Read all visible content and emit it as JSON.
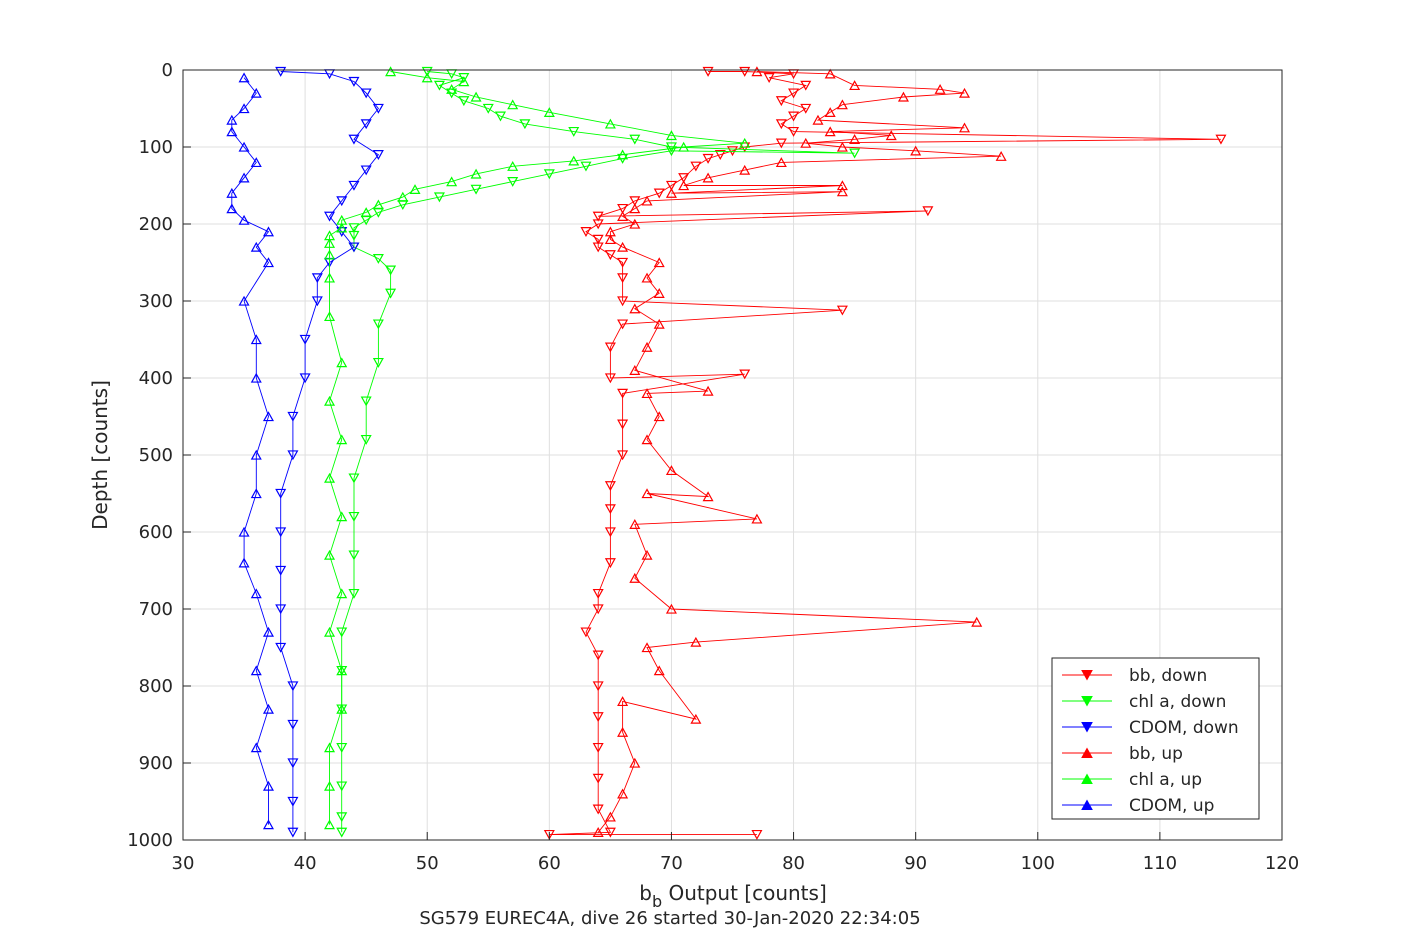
{
  "xlabel_main": "b",
  "xlabel_sub": "b",
  "xlabel_rest": " Output [counts]",
  "ylabel": "Depth [counts]",
  "caption": "SG579 EUREC4A, dive 26 started 30-Jan-2020 22:34:05",
  "legend": [
    {
      "label": "bb, down",
      "color": "#ff0000",
      "marker": "triangle-down"
    },
    {
      "label": "chl a, down",
      "color": "#00ff00",
      "marker": "triangle-down"
    },
    {
      "label": "CDOM, down",
      "color": "#0000ff",
      "marker": "triangle-down"
    },
    {
      "label": "bb, up",
      "color": "#ff0000",
      "marker": "triangle-up"
    },
    {
      "label": "chl a, up",
      "color": "#00ff00",
      "marker": "triangle-up"
    },
    {
      "label": "CDOM, up",
      "color": "#0000ff",
      "marker": "triangle-up"
    }
  ],
  "chart_data": {
    "type": "scatter",
    "legend_position": "bottom-right",
    "grid": true,
    "xlim": [
      30,
      120
    ],
    "ylim": [
      0,
      1000
    ],
    "y_reversed": true,
    "xticks": [
      "30",
      "40",
      "50",
      "60",
      "70",
      "80",
      "90",
      "100",
      "110",
      "120"
    ],
    "yticks": [
      "0",
      "100",
      "200",
      "300",
      "400",
      "500",
      "600",
      "700",
      "800",
      "900",
      "1000"
    ],
    "series": [
      {
        "name": "bb, down",
        "color": "#ff0000",
        "marker": "triangle-down",
        "points": [
          [
            73,
            2
          ],
          [
            76,
            2
          ],
          [
            80,
            5
          ],
          [
            78,
            10
          ],
          [
            81,
            20
          ],
          [
            80,
            30
          ],
          [
            79,
            40
          ],
          [
            81,
            50
          ],
          [
            80,
            60
          ],
          [
            79,
            70
          ],
          [
            80,
            80
          ],
          [
            115,
            90
          ],
          [
            79,
            95
          ],
          [
            76,
            100
          ],
          [
            75,
            105
          ],
          [
            74,
            110
          ],
          [
            73,
            115
          ],
          [
            72,
            125
          ],
          [
            71,
            140
          ],
          [
            70,
            150
          ],
          [
            69,
            160
          ],
          [
            67,
            170
          ],
          [
            66,
            180
          ],
          [
            64,
            190
          ],
          [
            91,
            183
          ],
          [
            64,
            200
          ],
          [
            63,
            210
          ],
          [
            64,
            220
          ],
          [
            64,
            230
          ],
          [
            65,
            240
          ],
          [
            66,
            250
          ],
          [
            66,
            270
          ],
          [
            66,
            300
          ],
          [
            84,
            312
          ],
          [
            66,
            330
          ],
          [
            65,
            360
          ],
          [
            65,
            400
          ],
          [
            76,
            395
          ],
          [
            66,
            420
          ],
          [
            66,
            460
          ],
          [
            66,
            500
          ],
          [
            65,
            540
          ],
          [
            65,
            570
          ],
          [
            65,
            600
          ],
          [
            65,
            640
          ],
          [
            64,
            680
          ],
          [
            64,
            700
          ],
          [
            63,
            730
          ],
          [
            64,
            760
          ],
          [
            64,
            800
          ],
          [
            64,
            840
          ],
          [
            64,
            880
          ],
          [
            64,
            920
          ],
          [
            64,
            960
          ],
          [
            65,
            990
          ],
          [
            60,
            993
          ],
          [
            77,
            993
          ]
        ]
      },
      {
        "name": "chl a, down",
        "color": "#00ff00",
        "marker": "triangle-down",
        "points": [
          [
            50,
            2
          ],
          [
            52,
            5
          ],
          [
            53,
            10
          ],
          [
            51,
            20
          ],
          [
            52,
            30
          ],
          [
            53,
            40
          ],
          [
            55,
            50
          ],
          [
            56,
            60
          ],
          [
            58,
            70
          ],
          [
            62,
            80
          ],
          [
            67,
            90
          ],
          [
            70,
            100
          ],
          [
            85,
            108
          ],
          [
            70,
            105
          ],
          [
            66,
            115
          ],
          [
            63,
            125
          ],
          [
            60,
            135
          ],
          [
            57,
            145
          ],
          [
            54,
            155
          ],
          [
            51,
            165
          ],
          [
            48,
            175
          ],
          [
            46,
            185
          ],
          [
            45,
            195
          ],
          [
            44,
            205
          ],
          [
            44,
            215
          ],
          [
            44,
            230
          ],
          [
            46,
            245
          ],
          [
            47,
            260
          ],
          [
            47,
            290
          ],
          [
            46,
            330
          ],
          [
            46,
            380
          ],
          [
            45,
            430
          ],
          [
            45,
            480
          ],
          [
            44,
            530
          ],
          [
            44,
            580
          ],
          [
            44,
            630
          ],
          [
            44,
            680
          ],
          [
            43,
            730
          ],
          [
            43,
            780
          ],
          [
            43,
            830
          ],
          [
            43,
            880
          ],
          [
            43,
            930
          ],
          [
            43,
            970
          ],
          [
            43,
            990
          ]
        ]
      },
      {
        "name": "CDOM, down",
        "color": "#0000ff",
        "marker": "triangle-down",
        "points": [
          [
            38,
            2
          ],
          [
            42,
            5
          ],
          [
            44,
            15
          ],
          [
            45,
            30
          ],
          [
            46,
            50
          ],
          [
            45,
            70
          ],
          [
            44,
            90
          ],
          [
            46,
            110
          ],
          [
            45,
            130
          ],
          [
            44,
            150
          ],
          [
            43,
            170
          ],
          [
            42,
            190
          ],
          [
            43,
            210
          ],
          [
            44,
            230
          ],
          [
            42,
            250
          ],
          [
            41,
            270
          ],
          [
            41,
            300
          ],
          [
            40,
            350
          ],
          [
            40,
            400
          ],
          [
            39,
            450
          ],
          [
            39,
            500
          ],
          [
            38,
            550
          ],
          [
            38,
            600
          ],
          [
            38,
            650
          ],
          [
            38,
            700
          ],
          [
            38,
            750
          ],
          [
            39,
            800
          ],
          [
            39,
            850
          ],
          [
            39,
            900
          ],
          [
            39,
            950
          ],
          [
            39,
            990
          ]
        ]
      },
      {
        "name": "bb, up",
        "color": "#ff0000",
        "marker": "triangle-up",
        "points": [
          [
            77,
            2
          ],
          [
            83,
            5
          ],
          [
            85,
            20
          ],
          [
            92,
            25
          ],
          [
            94,
            30
          ],
          [
            89,
            35
          ],
          [
            84,
            45
          ],
          [
            83,
            55
          ],
          [
            82,
            65
          ],
          [
            94,
            75
          ],
          [
            83,
            80
          ],
          [
            88,
            85
          ],
          [
            85,
            90
          ],
          [
            81,
            95
          ],
          [
            84,
            100
          ],
          [
            90,
            105
          ],
          [
            97,
            112
          ],
          [
            79,
            120
          ],
          [
            76,
            130
          ],
          [
            73,
            140
          ],
          [
            71,
            150
          ],
          [
            84,
            150
          ],
          [
            70,
            160
          ],
          [
            84,
            158
          ],
          [
            68,
            170
          ],
          [
            67,
            180
          ],
          [
            66,
            190
          ],
          [
            67,
            200
          ],
          [
            65,
            210
          ],
          [
            65,
            220
          ],
          [
            66,
            230
          ],
          [
            69,
            250
          ],
          [
            68,
            270
          ],
          [
            69,
            290
          ],
          [
            67,
            310
          ],
          [
            69,
            330
          ],
          [
            68,
            360
          ],
          [
            67,
            390
          ],
          [
            73,
            417
          ],
          [
            68,
            420
          ],
          [
            69,
            450
          ],
          [
            68,
            480
          ],
          [
            70,
            520
          ],
          [
            73,
            554
          ],
          [
            68,
            550
          ],
          [
            77,
            583
          ],
          [
            67,
            590
          ],
          [
            68,
            630
          ],
          [
            67,
            660
          ],
          [
            70,
            700
          ],
          [
            95,
            717
          ],
          [
            72,
            743
          ],
          [
            68,
            750
          ],
          [
            69,
            780
          ],
          [
            72,
            843
          ],
          [
            66,
            820
          ],
          [
            66,
            860
          ],
          [
            67,
            900
          ],
          [
            66,
            940
          ],
          [
            65,
            970
          ],
          [
            64,
            990
          ]
        ]
      },
      {
        "name": "chl a, up",
        "color": "#00ff00",
        "marker": "triangle-up",
        "points": [
          [
            47,
            2
          ],
          [
            50,
            10
          ],
          [
            53,
            15
          ],
          [
            52,
            25
          ],
          [
            54,
            35
          ],
          [
            57,
            45
          ],
          [
            60,
            55
          ],
          [
            65,
            70
          ],
          [
            70,
            85
          ],
          [
            76,
            95
          ],
          [
            71,
            100
          ],
          [
            66,
            110
          ],
          [
            62,
            118
          ],
          [
            57,
            125
          ],
          [
            54,
            135
          ],
          [
            52,
            145
          ],
          [
            49,
            155
          ],
          [
            48,
            165
          ],
          [
            46,
            175
          ],
          [
            45,
            185
          ],
          [
            43,
            195
          ],
          [
            43,
            205
          ],
          [
            42,
            215
          ],
          [
            42,
            225
          ],
          [
            42,
            240
          ],
          [
            42,
            270
          ],
          [
            42,
            320
          ],
          [
            43,
            380
          ],
          [
            42,
            430
          ],
          [
            43,
            480
          ],
          [
            42,
            530
          ],
          [
            43,
            580
          ],
          [
            42,
            630
          ],
          [
            43,
            680
          ],
          [
            42,
            730
          ],
          [
            43,
            780
          ],
          [
            43,
            830
          ],
          [
            42,
            880
          ],
          [
            42,
            930
          ],
          [
            42,
            980
          ]
        ]
      },
      {
        "name": "CDOM, up",
        "color": "#0000ff",
        "marker": "triangle-up",
        "points": [
          [
            35,
            10
          ],
          [
            36,
            30
          ],
          [
            35,
            50
          ],
          [
            34,
            65
          ],
          [
            34,
            80
          ],
          [
            35,
            100
          ],
          [
            36,
            120
          ],
          [
            35,
            140
          ],
          [
            34,
            160
          ],
          [
            34,
            180
          ],
          [
            35,
            195
          ],
          [
            37,
            210
          ],
          [
            36,
            230
          ],
          [
            37,
            250
          ],
          [
            35,
            300
          ],
          [
            36,
            350
          ],
          [
            36,
            400
          ],
          [
            37,
            450
          ],
          [
            36,
            500
          ],
          [
            36,
            550
          ],
          [
            35,
            600
          ],
          [
            35,
            640
          ],
          [
            36,
            680
          ],
          [
            37,
            730
          ],
          [
            36,
            780
          ],
          [
            37,
            830
          ],
          [
            36,
            880
          ],
          [
            37,
            930
          ],
          [
            37,
            980
          ]
        ]
      }
    ]
  }
}
